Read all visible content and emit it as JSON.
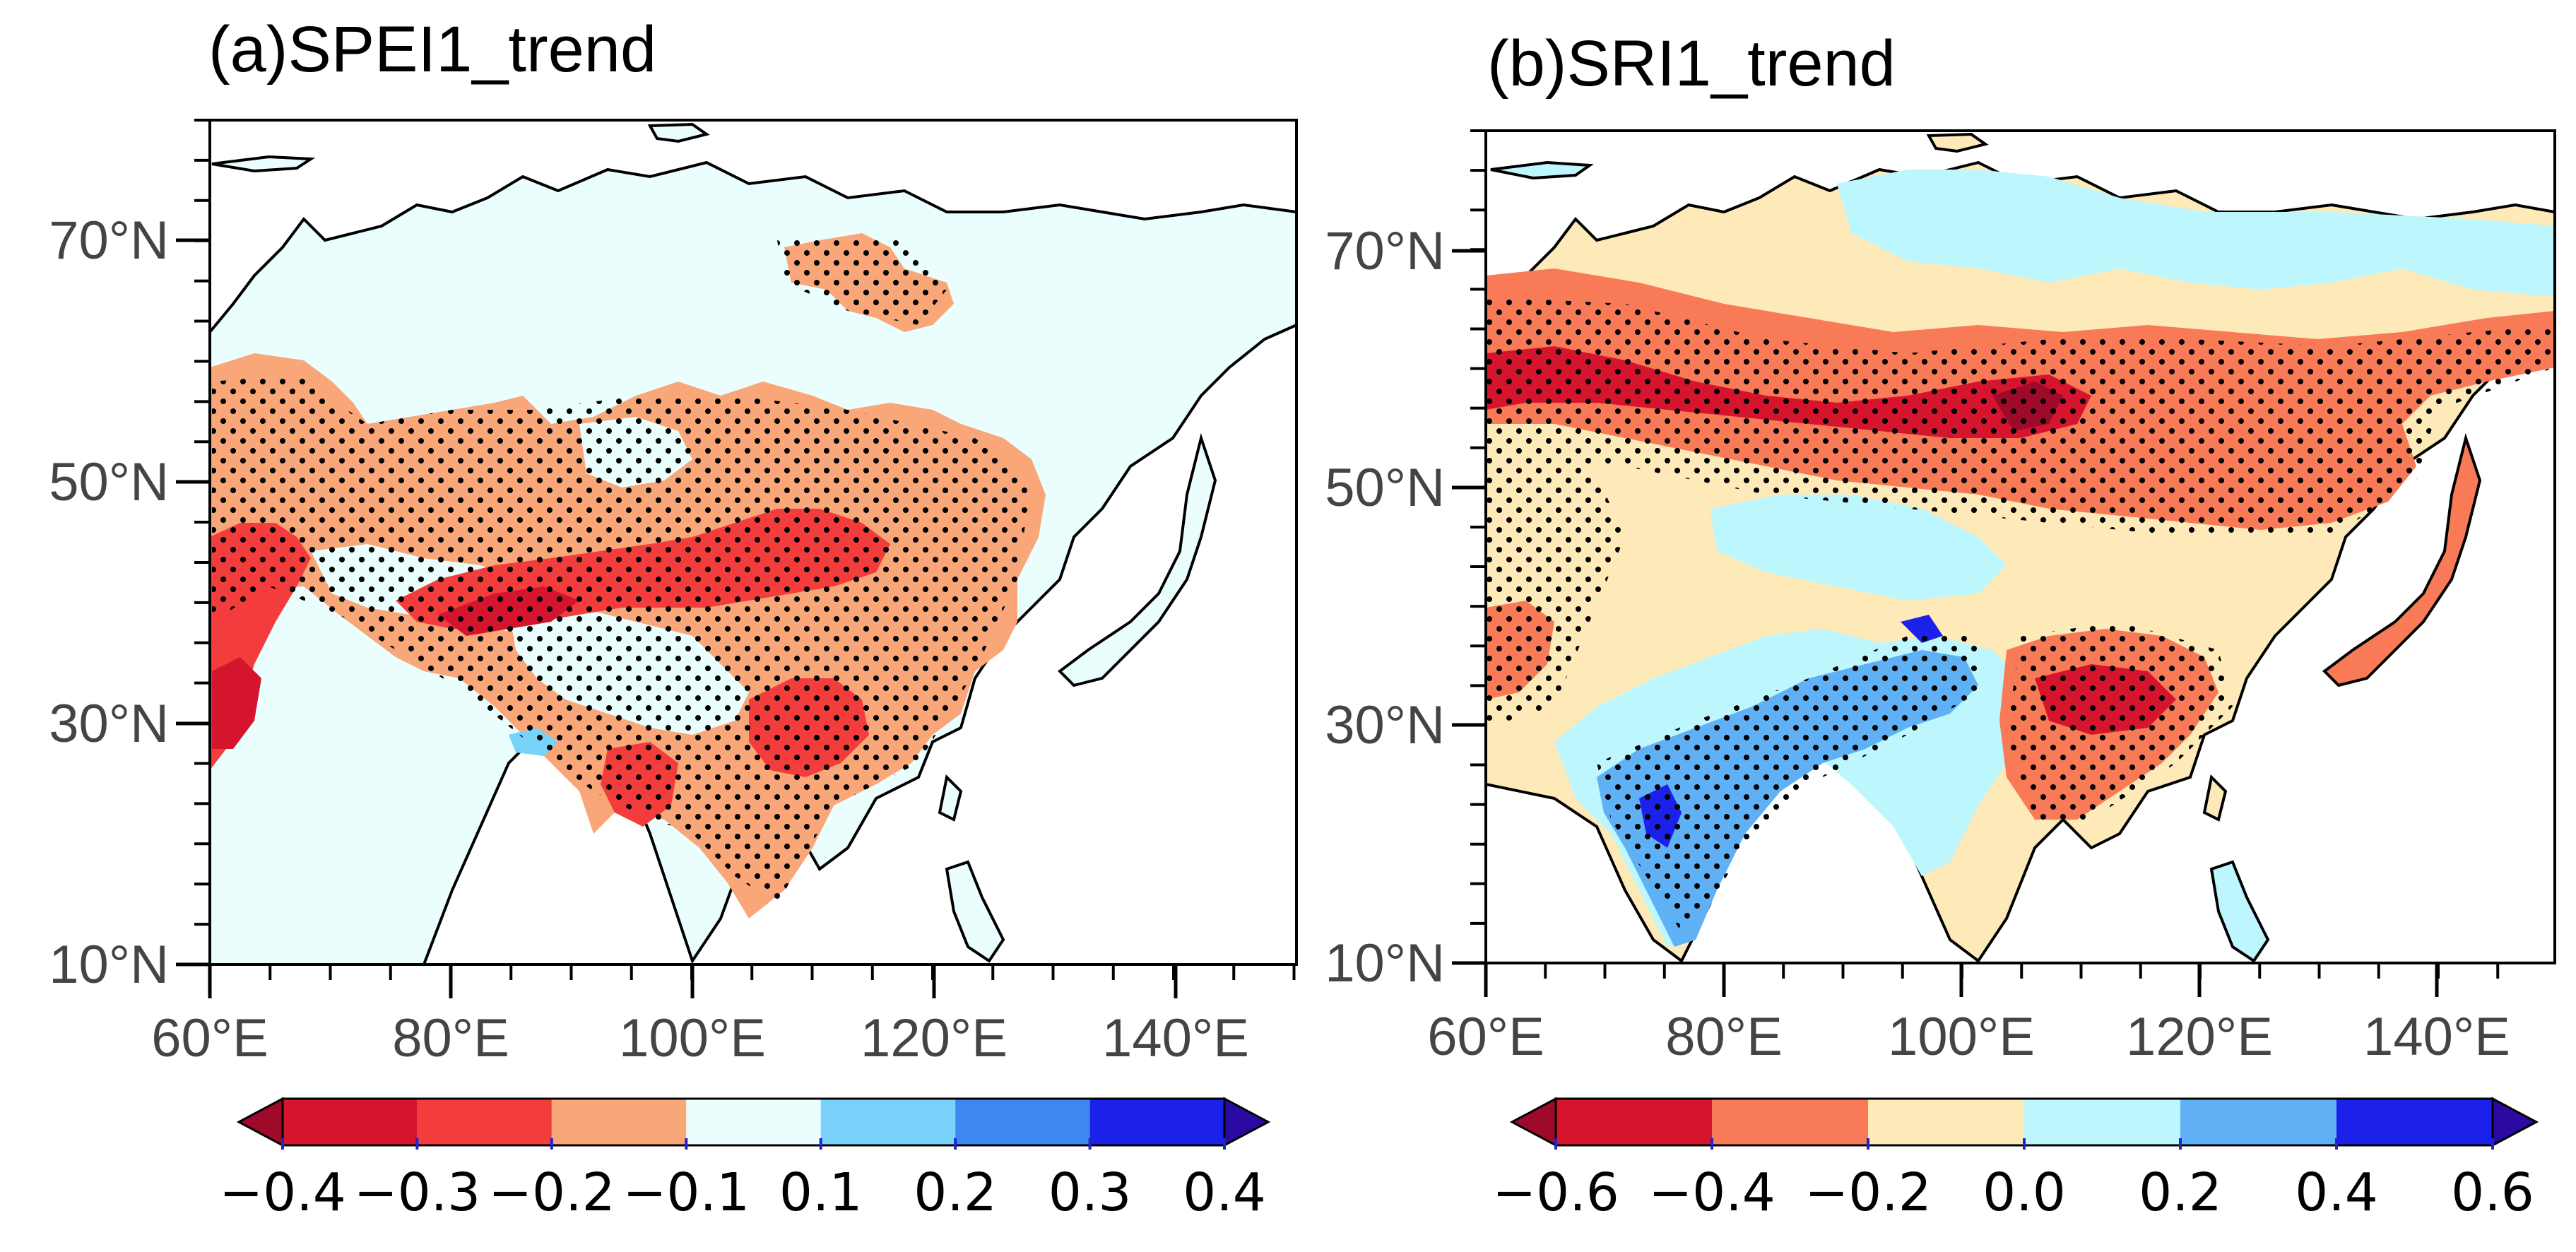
{
  "panels": [
    {
      "title": "(a)SPEI1_trend",
      "lat_labels": [
        "70°N",
        "50°N",
        "30°N",
        "10°N"
      ],
      "lon_labels": [
        "60°E",
        "80°E",
        "100°E",
        "120°E",
        "140°E"
      ],
      "colorbar": {
        "colors": [
          "#9e0a2a",
          "#d4152d",
          "#f33c3c",
          "#f9a678",
          "#eafefe",
          "#79d2fa",
          "#3d88f0",
          "#1b21e8",
          "#2a0aa0"
        ],
        "tick_labels": [
          "−0.4",
          "−0.3",
          "−0.2",
          "−0.1",
          "0.1",
          "0.2",
          "0.3",
          "0.4"
        ]
      }
    },
    {
      "title": "(b)SRI1_trend",
      "lat_labels": [
        "70°N",
        "50°N",
        "30°N",
        "10°N"
      ],
      "lon_labels": [
        "60°E",
        "80°E",
        "100°E",
        "120°E",
        "140°E"
      ],
      "colorbar": {
        "colors": [
          "#9e0a2a",
          "#d4152d",
          "#f87a57",
          "#fdeab8",
          "#bdf6fc",
          "#5fb0f5",
          "#1b21e8",
          "#2a0aa0"
        ],
        "tick_labels": [
          "−0.6",
          "−0.4",
          "−0.2",
          "0.0",
          "0.2",
          "0.4",
          "0.6"
        ]
      }
    }
  ]
}
